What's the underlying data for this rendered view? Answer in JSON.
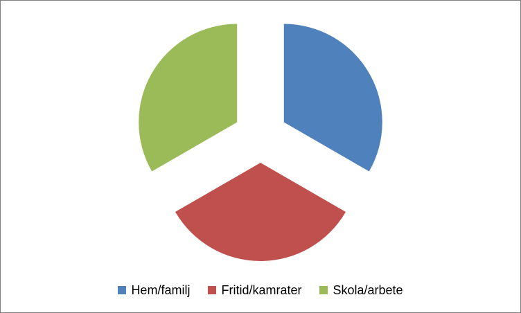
{
  "chart_data": {
    "type": "pie",
    "exploded": true,
    "categories": [
      "Hem/familj",
      "Fritid/kamrater",
      "Skola/arbete"
    ],
    "values": [
      33.3,
      33.3,
      33.3
    ],
    "colors": [
      "#4f81bd",
      "#c0504d",
      "#9bbb59"
    ],
    "title": "",
    "legend_position": "bottom"
  }
}
